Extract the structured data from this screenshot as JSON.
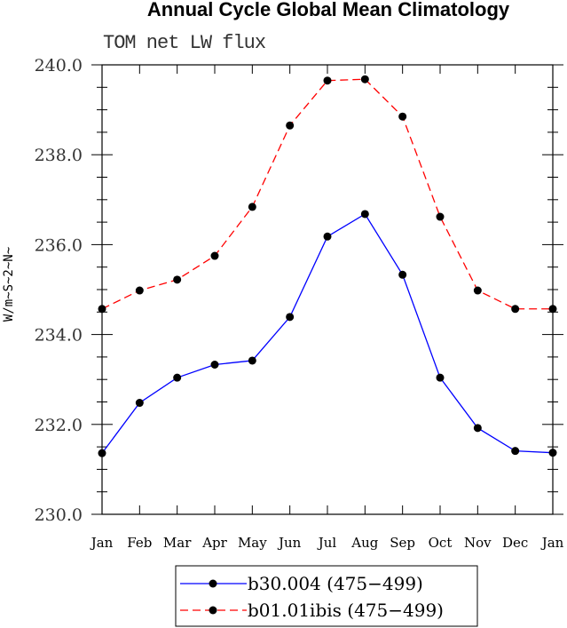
{
  "chart_data": {
    "type": "line",
    "title": "Annual Cycle Global Mean Climatology",
    "subtitle": "TOM net LW flux",
    "xlabel": "",
    "ylabel": "W/m~S~2~N~",
    "categories": [
      "Jan",
      "Feb",
      "Mar",
      "Apr",
      "May",
      "Jun",
      "Jul",
      "Aug",
      "Sep",
      "Oct",
      "Nov",
      "Dec",
      "Jan"
    ],
    "ylim": [
      230,
      240
    ],
    "yticks": [
      "230.0",
      "232.0",
      "234.0",
      "236.0",
      "238.0",
      "240.0"
    ],
    "legend_position": "bottom",
    "series": [
      {
        "name": "b30.004 (475-499)",
        "color": "#0000ff",
        "dash": "solid",
        "values": [
          231.36,
          232.48,
          233.04,
          233.33,
          233.42,
          234.39,
          236.18,
          236.68,
          235.33,
          233.04,
          231.92,
          231.41,
          231.37
        ]
      },
      {
        "name": "b01.01ibis (475-499)",
        "color": "#ff0000",
        "dash": "dashed",
        "values": [
          234.57,
          234.98,
          235.22,
          235.75,
          236.84,
          238.65,
          239.65,
          239.68,
          238.85,
          236.62,
          234.98,
          234.57,
          234.57
        ]
      }
    ]
  }
}
